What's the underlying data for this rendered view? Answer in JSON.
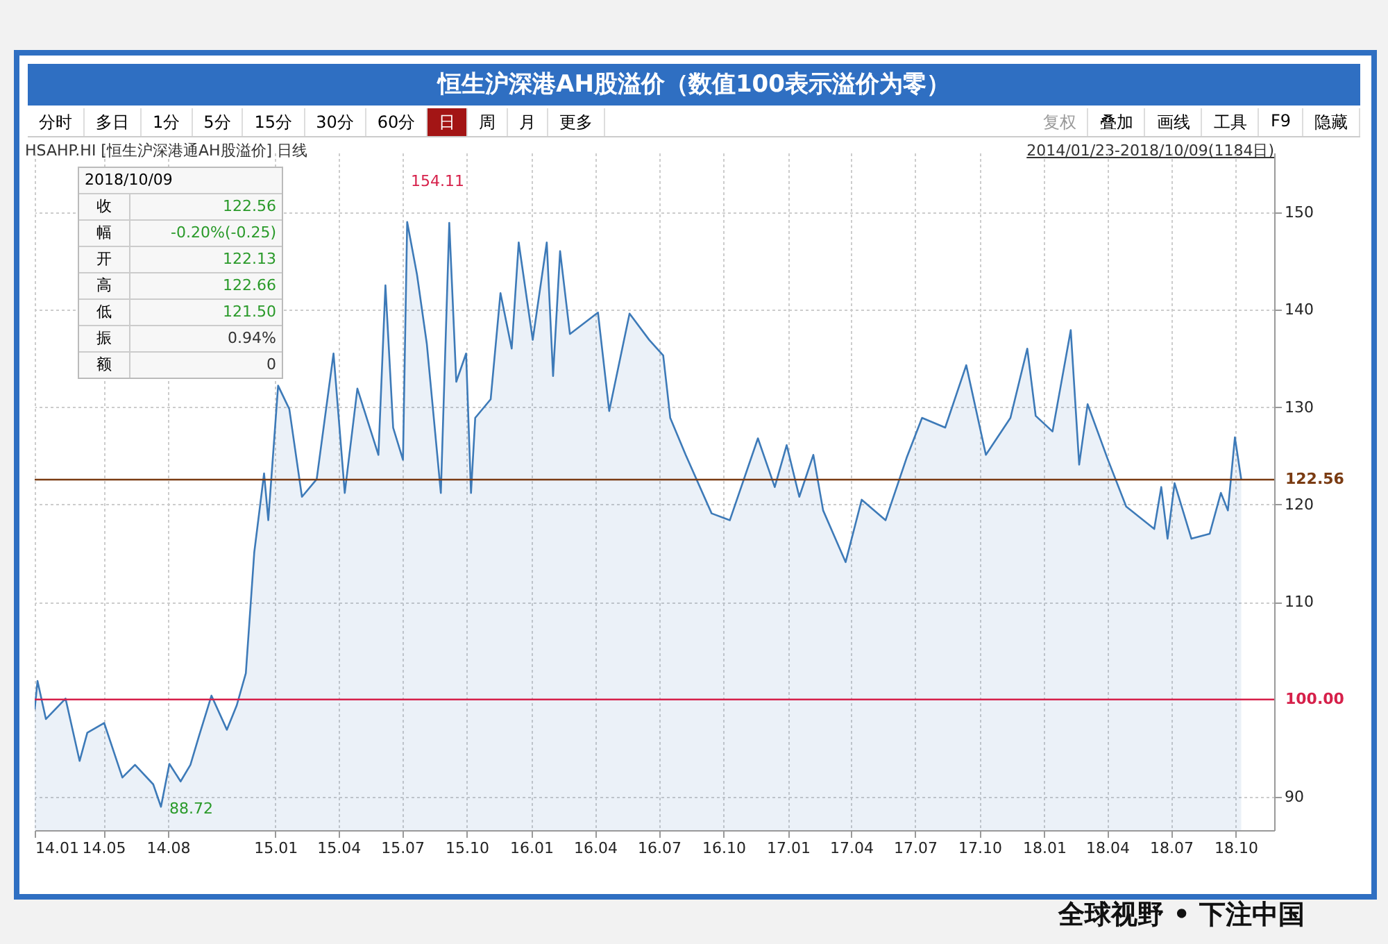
{
  "chart_data": {
    "type": "area",
    "title": "恒生沪深港AH股溢价（数值100表示溢价为零）",
    "subtitle": "HSAHP.HI  [恒生沪深港通AH股溢价] 日线",
    "x": [
      "2014-01-23",
      "2014-01-27",
      "2014-02-08",
      "2014-03-08",
      "2014-03-28",
      "2014-04-08",
      "2014-05-02",
      "2014-05-28",
      "2014-06-15",
      "2014-07-11",
      "2014-07-22",
      "2014-08-03",
      "2014-08-19",
      "2014-09-02",
      "2014-09-14",
      "2014-10-02",
      "2014-10-24",
      "2014-11-07",
      "2014-11-20",
      "2014-12-02",
      "2014-12-16",
      "2014-12-22",
      "2015-01-05",
      "2015-01-21",
      "2015-02-08",
      "2015-03-01",
      "2015-03-25",
      "2015-04-10",
      "2015-04-28",
      "2015-05-28",
      "2015-06-07",
      "2015-06-18",
      "2015-07-02",
      "2015-07-08",
      "2015-07-22",
      "2015-08-05",
      "2015-08-25",
      "2015-09-06",
      "2015-09-16",
      "2015-09-30",
      "2015-10-07",
      "2015-10-13",
      "2015-11-04",
      "2015-11-18",
      "2015-12-04",
      "2015-12-14",
      "2016-01-03",
      "2016-01-23",
      "2016-02-01",
      "2016-02-11",
      "2016-02-25",
      "2016-04-05",
      "2016-04-21",
      "2016-05-20",
      "2016-06-17",
      "2016-07-07",
      "2016-07-13",
      "2016-07-17",
      "2016-08-08",
      "2016-09-14",
      "2016-10-10",
      "2016-11-19",
      "2016-12-13",
      "2016-12-30",
      "2017-01-17",
      "2017-02-06",
      "2017-02-20",
      "2017-03-24",
      "2017-04-16",
      "2017-05-20",
      "2017-06-19",
      "2017-07-11",
      "2017-08-13",
      "2017-09-12",
      "2017-10-10",
      "2017-11-14",
      "2017-12-08",
      "2017-12-20",
      "2018-01-13",
      "2018-02-08",
      "2018-02-20",
      "2018-03-04",
      "2018-04-02",
      "2018-04-28",
      "2018-06-07",
      "2018-06-17",
      "2018-06-26",
      "2018-07-06",
      "2018-07-30",
      "2018-08-25",
      "2018-09-10",
      "2018-09-20",
      "2018-09-30",
      "2018-10-09"
    ],
    "series": [
      {
        "color": "#3d7ab8",
        "values": [
          99.0,
          101.9,
          98.0,
          100.1,
          93.7,
          96.6,
          97.6,
          92.0,
          93.3,
          91.3,
          89.0,
          93.4,
          91.6,
          93.3,
          96.2,
          100.4,
          96.9,
          99.4,
          102.7,
          115.1,
          123.2,
          118.4,
          132.2,
          129.8,
          120.8,
          122.6,
          135.5,
          121.2,
          131.9,
          125.1,
          142.5,
          127.9,
          124.6,
          149.0,
          143.6,
          136.5,
          121.2,
          148.9,
          132.6,
          135.5,
          121.2,
          128.9,
          130.8,
          141.7,
          136.0,
          146.9,
          136.9,
          146.9,
          133.2,
          146.0,
          137.5,
          139.7,
          129.6,
          139.6,
          136.9,
          135.3,
          131.5,
          128.9,
          125.1,
          119.1,
          118.4,
          126.8,
          121.8,
          126.1,
          120.8,
          125.1,
          119.4,
          114.1,
          120.5,
          118.4,
          124.8,
          128.9,
          127.9,
          134.3,
          125.1,
          128.9,
          136.0,
          129.1,
          127.5,
          137.9,
          124.1,
          130.3,
          124.6,
          119.8,
          117.5,
          121.8,
          116.5,
          122.2,
          116.5,
          117.0,
          121.2,
          119.4,
          126.9,
          122.6
        ]
      }
    ],
    "xlim": [
      "2014-01-23",
      "2018-11-25"
    ],
    "xticks": [
      {
        "value": "2014-01-23",
        "label": "14.01"
      },
      {
        "value": "2014-05-01",
        "label": "14.05"
      },
      {
        "value": "2014-08-01",
        "label": "14.08"
      },
      {
        "value": "2015-01-01",
        "label": "15.01"
      },
      {
        "value": "2015-04-01",
        "label": "15.04"
      },
      {
        "value": "2015-07-01",
        "label": "15.07"
      },
      {
        "value": "2015-10-01",
        "label": "15.10"
      },
      {
        "value": "2016-01-01",
        "label": "16.01"
      },
      {
        "value": "2016-04-01",
        "label": "16.04"
      },
      {
        "value": "2016-07-01",
        "label": "16.07"
      },
      {
        "value": "2016-10-01",
        "label": "16.10"
      },
      {
        "value": "2017-01-01",
        "label": "17.01"
      },
      {
        "value": "2017-04-01",
        "label": "17.04"
      },
      {
        "value": "2017-07-01",
        "label": "17.07"
      },
      {
        "value": "2017-10-01",
        "label": "17.10"
      },
      {
        "value": "2018-01-01",
        "label": "18.01"
      },
      {
        "value": "2018-04-01",
        "label": "18.04"
      },
      {
        "value": "2018-07-01",
        "label": "18.07"
      },
      {
        "value": "2018-10-01",
        "label": "18.10"
      }
    ],
    "ylim": [
      86.6,
      156.1
    ],
    "yticks": [
      90,
      110,
      120,
      130,
      140,
      150
    ],
    "grid": true,
    "ref_lines": [
      {
        "axis": "y",
        "value": 122.56,
        "label": "122.56",
        "color": "#7a3b12"
      },
      {
        "axis": "y",
        "value": 100,
        "label": "100.00",
        "color": "#d6204a"
      }
    ],
    "annotations": [
      "分时",
      "多日",
      "1分",
      "5分",
      "15分",
      "30分",
      "60分",
      "日",
      "周",
      "月",
      "更多",
      "复权",
      "叠加",
      "画线",
      "工具",
      "F9",
      "隐藏",
      "2014/01/23-2018/10/09(1184日)",
      "2018/10/09",
      "收",
      "122.56",
      "幅",
      "-0.20%(-0.25)",
      "开",
      "122.13",
      "高",
      "122.66",
      "低",
      "121.50",
      "振",
      "0.94%",
      "额",
      "0",
      "全球视野 • 下注中国",
      "154.11",
      {
        "text": "88.72",
        "x": "2014-07-22",
        "y": 88.72
      }
    ]
  }
}
